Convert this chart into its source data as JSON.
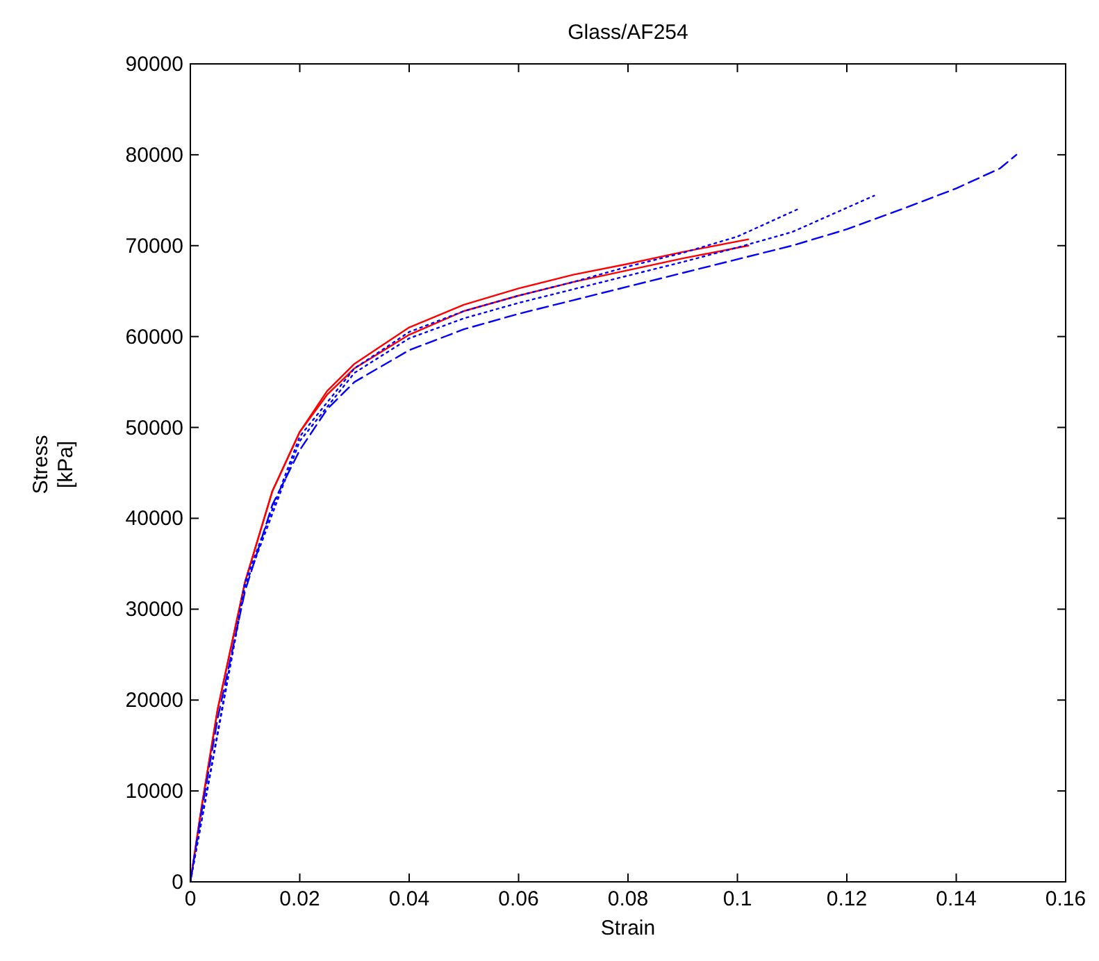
{
  "chart_data": {
    "type": "line",
    "title": "Glass/AF254",
    "xlabel": "Strain",
    "ylabel": "Stress\n[kPa]",
    "xlim": [
      0,
      0.16
    ],
    "ylim": [
      0,
      90000
    ],
    "xticks": [
      0,
      0.02,
      0.04,
      0.06,
      0.08,
      0.1,
      0.12,
      0.14,
      0.16
    ],
    "yticks": [
      0,
      10000,
      20000,
      30000,
      40000,
      50000,
      60000,
      70000,
      80000,
      90000
    ],
    "grid": false,
    "marker": "none",
    "series": [
      {
        "color": "#ff0000",
        "line_style": "solid",
        "x": [
          0,
          0.002,
          0.005,
          0.01,
          0.015,
          0.02,
          0.025,
          0.03,
          0.04,
          0.05,
          0.06,
          0.07,
          0.08,
          0.09,
          0.102
        ],
        "values": [
          0,
          8000,
          19000,
          33000,
          43000,
          49500,
          54000,
          57000,
          61000,
          63500,
          65300,
          66800,
          68000,
          69300,
          70700
        ]
      },
      {
        "color": "#ff0000",
        "line_style": "solid",
        "x": [
          0,
          0.002,
          0.005,
          0.01,
          0.015,
          0.02,
          0.025,
          0.03,
          0.04,
          0.05,
          0.06,
          0.07,
          0.08,
          0.09,
          0.102
        ],
        "values": [
          0,
          8000,
          19000,
          33000,
          43000,
          49500,
          53600,
          56500,
          60200,
          62800,
          64500,
          66000,
          67300,
          68600,
          70000
        ]
      },
      {
        "color": "#0000ff",
        "line_style": "dashed",
        "x": [
          0,
          0.002,
          0.005,
          0.01,
          0.015,
          0.02,
          0.025,
          0.03,
          0.04,
          0.05,
          0.06,
          0.07,
          0.08,
          0.09,
          0.1,
          0.11,
          0.12,
          0.13,
          0.14,
          0.148,
          0.151
        ],
        "values": [
          0,
          7500,
          18000,
          32000,
          41500,
          47500,
          52000,
          55000,
          58500,
          60800,
          62500,
          64000,
          65500,
          67000,
          68500,
          70000,
          71800,
          74000,
          76300,
          78500,
          80000
        ]
      },
      {
        "color": "#0000ff",
        "line_style": "dotted",
        "x": [
          0,
          0.01,
          0.02,
          0.03,
          0.04,
          0.05,
          0.06,
          0.07,
          0.08,
          0.09,
          0.1,
          0.11,
          0.125
        ],
        "values": [
          0,
          32500,
          48500,
          56000,
          59800,
          62000,
          63700,
          65200,
          66700,
          68200,
          69800,
          71500,
          75500
        ]
      },
      {
        "color": "#0000ff",
        "line_style": "dotted",
        "x": [
          0,
          0.01,
          0.02,
          0.03,
          0.04,
          0.05,
          0.06,
          0.07,
          0.08,
          0.09,
          0.1,
          0.111
        ],
        "values": [
          0,
          33000,
          49000,
          56500,
          60500,
          62800,
          64500,
          66000,
          67700,
          69200,
          71000,
          74000
        ]
      }
    ]
  }
}
